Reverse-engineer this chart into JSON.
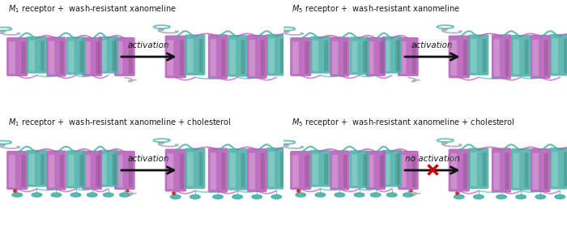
{
  "panels": [
    {
      "title_parts": [
        [
          "M",
          "1"
        ],
        [
          " receptor +  wash-resistant xanomeline",
          ""
        ]
      ],
      "arrow_label": "activation",
      "has_x": false,
      "row": 0,
      "col": 0
    },
    {
      "title_parts": [
        [
          "M",
          "5"
        ],
        [
          " receptor +  wash-resistant xanomeline",
          ""
        ]
      ],
      "arrow_label": "activation",
      "has_x": false,
      "row": 0,
      "col": 1
    },
    {
      "title_parts": [
        [
          "M",
          "1"
        ],
        [
          " receptor +  wash-resistant xanomeline + cholesterol",
          ""
        ]
      ],
      "arrow_label": "activation",
      "has_x": false,
      "row": 1,
      "col": 0
    },
    {
      "title_parts": [
        [
          "M",
          "5"
        ],
        [
          " receptor +  wash-resistant xanomeline + cholesterol",
          ""
        ]
      ],
      "arrow_label": "no activation",
      "has_x": true,
      "row": 1,
      "col": 1
    }
  ],
  "bg_color": "#ffffff",
  "text_color": "#1a1a1a",
  "arrow_color": "#111111",
  "helix_purple": "#b85cb8",
  "helix_teal": "#4ab0a8",
  "loop_gray": "#a0a0b8",
  "x_color": "#cc0000",
  "title_fontsize": 7.0,
  "arrow_fontsize": 7.5
}
